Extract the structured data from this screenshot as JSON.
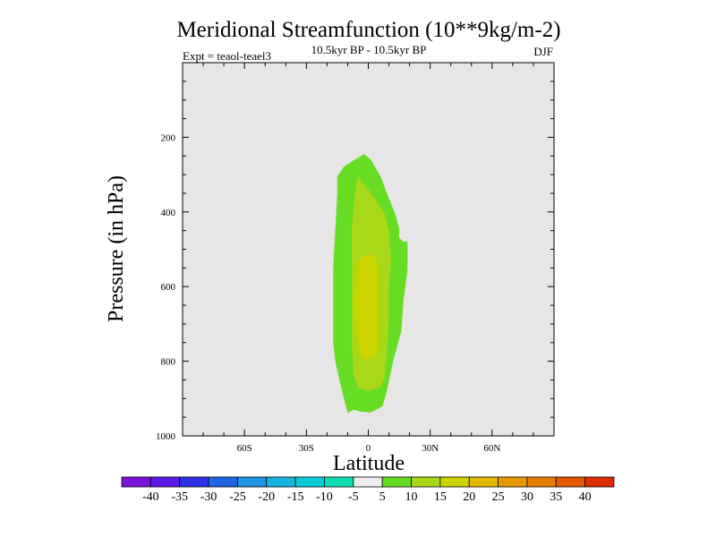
{
  "chart_data": {
    "type": "heatmap",
    "subtype": "filled-contour",
    "title": "Meridional Streamfunction (10**9kg/m-2)",
    "subtitle": "10.5kyr BP - 10.5kyr BP",
    "experiment_label": "Expt = teaol-teael3",
    "season": "DJF",
    "xlabel": "Latitude",
    "ylabel": "Pressure (in hPa)",
    "xlim": [
      -90,
      90
    ],
    "ylim": [
      0,
      1000
    ],
    "y_inverted": true,
    "background_color": "#e6e6e6",
    "x_ticks": [
      {
        "value": -60,
        "label": "60S"
      },
      {
        "value": -30,
        "label": "30S"
      },
      {
        "value": 0,
        "label": "0"
      },
      {
        "value": 30,
        "label": "30N"
      },
      {
        "value": 60,
        "label": "60N"
      }
    ],
    "y_ticks": [
      {
        "value": 200,
        "label": "200"
      },
      {
        "value": 400,
        "label": "400"
      },
      {
        "value": 600,
        "label": "600"
      },
      {
        "value": 800,
        "label": "800"
      },
      {
        "value": 1000,
        "label": "1000"
      }
    ],
    "contour_regions": [
      {
        "level_range": "5 to 10",
        "color": "#66dd22",
        "outline": [
          [
            -2,
            245
          ],
          [
            1,
            258
          ],
          [
            6,
            305
          ],
          [
            9,
            350
          ],
          [
            13,
            405
          ],
          [
            15,
            445
          ],
          [
            15,
            470
          ],
          [
            17,
            480
          ],
          [
            19,
            479
          ],
          [
            19,
            555
          ],
          [
            17,
            640
          ],
          [
            16,
            720
          ],
          [
            12,
            800
          ],
          [
            9,
            880
          ],
          [
            7,
            920
          ],
          [
            4,
            930
          ],
          [
            1,
            937
          ],
          [
            -4,
            935
          ],
          [
            -7,
            930
          ],
          [
            -10,
            938
          ],
          [
            -12,
            895
          ],
          [
            -14,
            850
          ],
          [
            -16,
            800
          ],
          [
            -17,
            750
          ],
          [
            -17,
            650
          ],
          [
            -17,
            550
          ],
          [
            -16,
            450
          ],
          [
            -15,
            350
          ],
          [
            -15,
            305
          ],
          [
            -12,
            280
          ],
          [
            -8,
            265
          ],
          [
            -5,
            255
          ]
        ]
      },
      {
        "level_range": "10 to 15",
        "color": "#a8d818",
        "outline": [
          [
            -5,
            305
          ],
          [
            -3,
            320
          ],
          [
            0,
            340
          ],
          [
            4,
            370
          ],
          [
            8,
            405
          ],
          [
            10,
            450
          ],
          [
            11,
            530
          ],
          [
            10,
            600
          ],
          [
            10,
            690
          ],
          [
            9,
            780
          ],
          [
            8,
            840
          ],
          [
            6,
            870
          ],
          [
            0,
            880
          ],
          [
            -5,
            872
          ],
          [
            -7,
            840
          ],
          [
            -8,
            760
          ],
          [
            -8,
            650
          ],
          [
            -8,
            550
          ],
          [
            -8,
            450
          ],
          [
            -7,
            380
          ],
          [
            -6,
            330
          ]
        ]
      },
      {
        "level_range": "15 to 20",
        "color": "#ccd400",
        "outline": [
          [
            -3,
            520
          ],
          [
            0,
            512
          ],
          [
            3,
            520
          ],
          [
            5,
            560
          ],
          [
            5,
            650
          ],
          [
            5,
            760
          ],
          [
            3,
            790
          ],
          [
            -2,
            797
          ],
          [
            -4,
            780
          ],
          [
            -6,
            720
          ],
          [
            -7,
            640
          ],
          [
            -6,
            570
          ],
          [
            -5,
            535
          ]
        ]
      }
    ],
    "colorbar": {
      "labels": [
        "-40",
        "-35",
        "-30",
        "-25",
        "-20",
        "-15",
        "-10",
        "-5",
        "5",
        "10",
        "15",
        "20",
        "25",
        "30",
        "35",
        "40"
      ],
      "colors": [
        "#7c14d8",
        "#5a1ce4",
        "#2e32e4",
        "#1f64e0",
        "#1c94e0",
        "#14b4dc",
        "#0acad6",
        "#10dcb4",
        "#ececec",
        "#66dd22",
        "#a8d818",
        "#ccd400",
        "#e4b800",
        "#e49a00",
        "#e47c00",
        "#e45800",
        "#dc2d00"
      ]
    }
  }
}
